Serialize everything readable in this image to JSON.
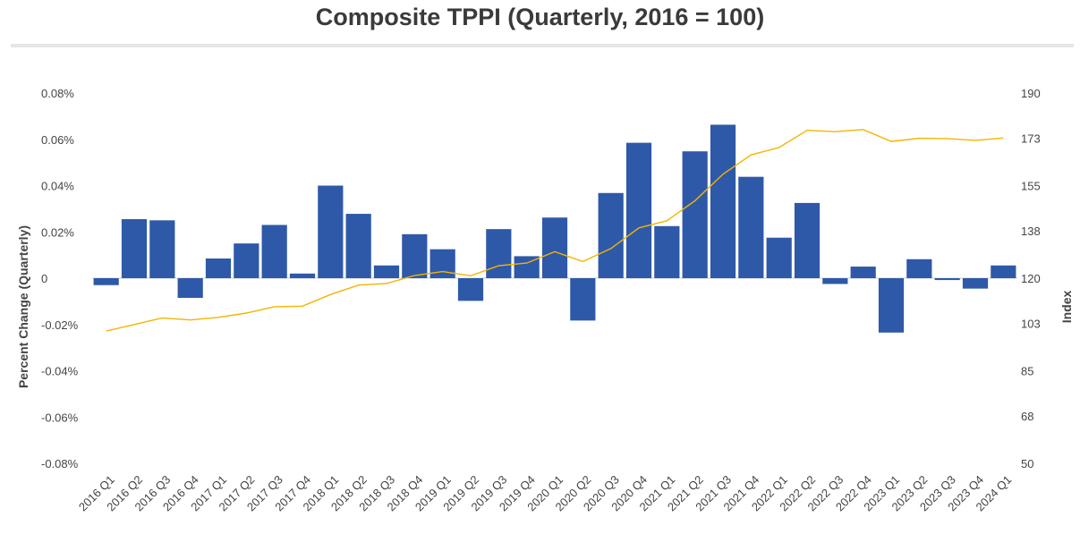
{
  "chart_data": {
    "type": "bar+line",
    "title": "Composite TPPI (Quarterly, 2016 = 100)",
    "categories": [
      "2016 Q1",
      "2016 Q2",
      "2016 Q3",
      "2016 Q4",
      "2017 Q1",
      "2017 Q2",
      "2017 Q3",
      "2017 Q4",
      "2018 Q1",
      "2018 Q2",
      "2018 Q3",
      "2018 Q4",
      "2019 Q1",
      "2019 Q2",
      "2019 Q3",
      "2019 Q4",
      "2020 Q1",
      "2020 Q2",
      "2020 Q3",
      "2020 Q4",
      "2021 Q1",
      "2021 Q2",
      "2021 Q3",
      "2021 Q4",
      "2022 Q1",
      "2022 Q2",
      "2022 Q3",
      "2022 Q4",
      "2023 Q1",
      "2023 Q2",
      "2023 Q3",
      "2023 Q4",
      "2024 Q1"
    ],
    "series": [
      {
        "name": "Percent Change (Quarterly)",
        "type": "bar",
        "axis": "left",
        "color": "#2e59a8",
        "values": [
          -0.003,
          0.0255,
          0.025,
          -0.0085,
          0.0085,
          0.015,
          0.023,
          0.002,
          0.04,
          0.0278,
          0.0055,
          0.019,
          0.0125,
          -0.0098,
          0.0212,
          0.0095,
          0.0262,
          -0.0183,
          0.0368,
          0.0585,
          0.0225,
          0.0548,
          0.0663,
          0.0438,
          0.0175,
          0.0325,
          -0.0025,
          0.005,
          -0.0235,
          0.0082,
          -0.0008,
          -0.0045,
          0.0055
        ]
      },
      {
        "name": "Index",
        "type": "line",
        "axis": "right",
        "color": "#f4b400",
        "values": [
          100.0,
          102.5,
          105.0,
          104.2,
          105.2,
          106.8,
          109.2,
          109.4,
          113.8,
          117.4,
          118.0,
          121.0,
          122.5,
          120.9,
          124.7,
          125.7,
          130.0,
          126.3,
          131.2,
          139.0,
          141.7,
          149.3,
          159.3,
          166.6,
          169.4,
          175.9,
          175.4,
          176.2,
          171.7,
          172.9,
          172.8,
          172.1,
          173.0
        ]
      }
    ],
    "yaxis_left": {
      "label": "Percent Change (Quarterly)",
      "min": -0.08,
      "max": 0.08,
      "ticks": [
        0.08,
        0.06,
        0.04,
        0.02,
        0,
        -0.02,
        -0.04,
        -0.06,
        -0.08
      ],
      "tick_labels": [
        "0.08%",
        "0.06%",
        "0.04%",
        "0.02%",
        "0",
        "-0.02%",
        "-0.04%",
        "-0.06%",
        "-0.08%"
      ]
    },
    "yaxis_right": {
      "label": "Index",
      "min": 50,
      "max": 190,
      "ticks": [
        190,
        173,
        155,
        138,
        120,
        103,
        85,
        68,
        50
      ],
      "tick_labels": [
        "190",
        "173",
        "155",
        "138",
        "120",
        "103",
        "85",
        "68",
        "50"
      ]
    },
    "grid": false,
    "legend": "none"
  }
}
